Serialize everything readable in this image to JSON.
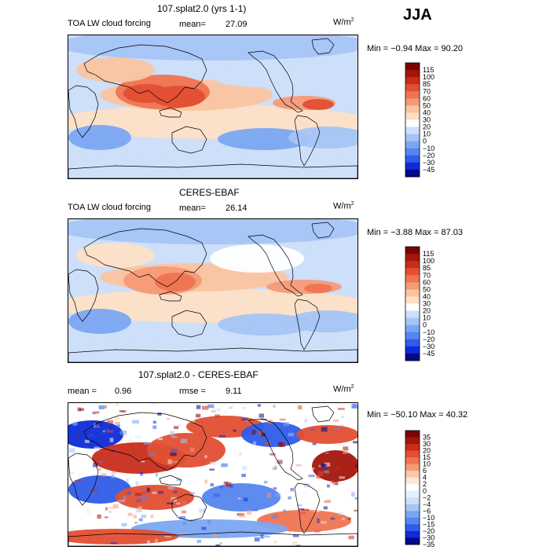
{
  "season": "JJA",
  "units_base": "W/m",
  "units_exp": "2",
  "colors": {
    "abs_scale": [
      "#08088c",
      "#0d2bd6",
      "#2f5ce8",
      "#5585ee",
      "#7aa6f2",
      "#a5c4f6",
      "#cddff9",
      "#ffffff",
      "#fde0c6",
      "#fbc4a0",
      "#f59a76",
      "#ee7452",
      "#e24f33",
      "#c92d1c",
      "#a3160c",
      "#7a0303"
    ],
    "diff_scale": [
      "#08088c",
      "#0d2bd6",
      "#2f5ce8",
      "#5585ee",
      "#7aa6f2",
      "#a5c4f6",
      "#cddff9",
      "#e6effc",
      "#ffffff",
      "#fde7d6",
      "#fbcaa8",
      "#f59a76",
      "#ee7452",
      "#e24f33",
      "#c92d1c",
      "#a3160c",
      "#7a0303"
    ]
  },
  "panels": [
    {
      "title": "107.splat2.0 (yrs 1-1)",
      "variable": "TOA LW cloud forcing",
      "mean_label": "mean=",
      "mean_value": "27.09",
      "min_max": "Min =  −0.94  Max =  90.20",
      "colorbar_labels": [
        "115",
        "100",
        "85",
        "70",
        "60",
        "50",
        "40",
        "30",
        "20",
        "10",
        "0",
        "−10",
        "−20",
        "−30",
        "−45"
      ]
    },
    {
      "title": "CERES-EBAF",
      "variable": "TOA LW cloud forcing",
      "mean_label": "mean=",
      "mean_value": "26.14",
      "min_max": "Min =  −3.88  Max =  87.03",
      "colorbar_labels": [
        "115",
        "100",
        "85",
        "70",
        "60",
        "50",
        "40",
        "30",
        "20",
        "10",
        "0",
        "−10",
        "−20",
        "−30",
        "−45"
      ]
    },
    {
      "title": "107.splat2.0 - CERES-EBAF",
      "mean_label": "mean =",
      "mean_value": "0.96",
      "rmse_label": "rmse =",
      "rmse_value": "9.11",
      "min_max": "Min = −50.10  Max =  40.32",
      "colorbar_labels": [
        "35",
        "30",
        "20",
        "15",
        "10",
        "6",
        "4",
        "2",
        "0",
        "−2",
        "−4",
        "−6",
        "−10",
        "−15",
        "−20",
        "−30",
        "−35"
      ]
    }
  ],
  "chart_data": [
    {
      "type": "heatmap",
      "title": "107.splat2.0 (yrs 1-1)",
      "subtitle": "TOA LW cloud forcing",
      "units": "W/m2",
      "mean": 27.09,
      "min": -0.94,
      "max": 90.2,
      "levels": [
        -45,
        -30,
        -20,
        -10,
        0,
        10,
        20,
        30,
        40,
        50,
        60,
        70,
        85,
        100,
        115
      ]
    },
    {
      "type": "heatmap",
      "title": "CERES-EBAF",
      "subtitle": "TOA LW cloud forcing",
      "units": "W/m2",
      "mean": 26.14,
      "min": -3.88,
      "max": 87.03,
      "levels": [
        -45,
        -30,
        -20,
        -10,
        0,
        10,
        20,
        30,
        40,
        50,
        60,
        70,
        85,
        100,
        115
      ]
    },
    {
      "type": "heatmap",
      "title": "107.splat2.0 - CERES-EBAF",
      "units": "W/m2",
      "mean": 0.96,
      "rmse": 9.11,
      "min": -50.1,
      "max": 40.32,
      "levels": [
        -35,
        -30,
        -20,
        -15,
        -10,
        -6,
        -4,
        -2,
        0,
        2,
        4,
        6,
        10,
        15,
        20,
        30,
        35
      ]
    }
  ]
}
